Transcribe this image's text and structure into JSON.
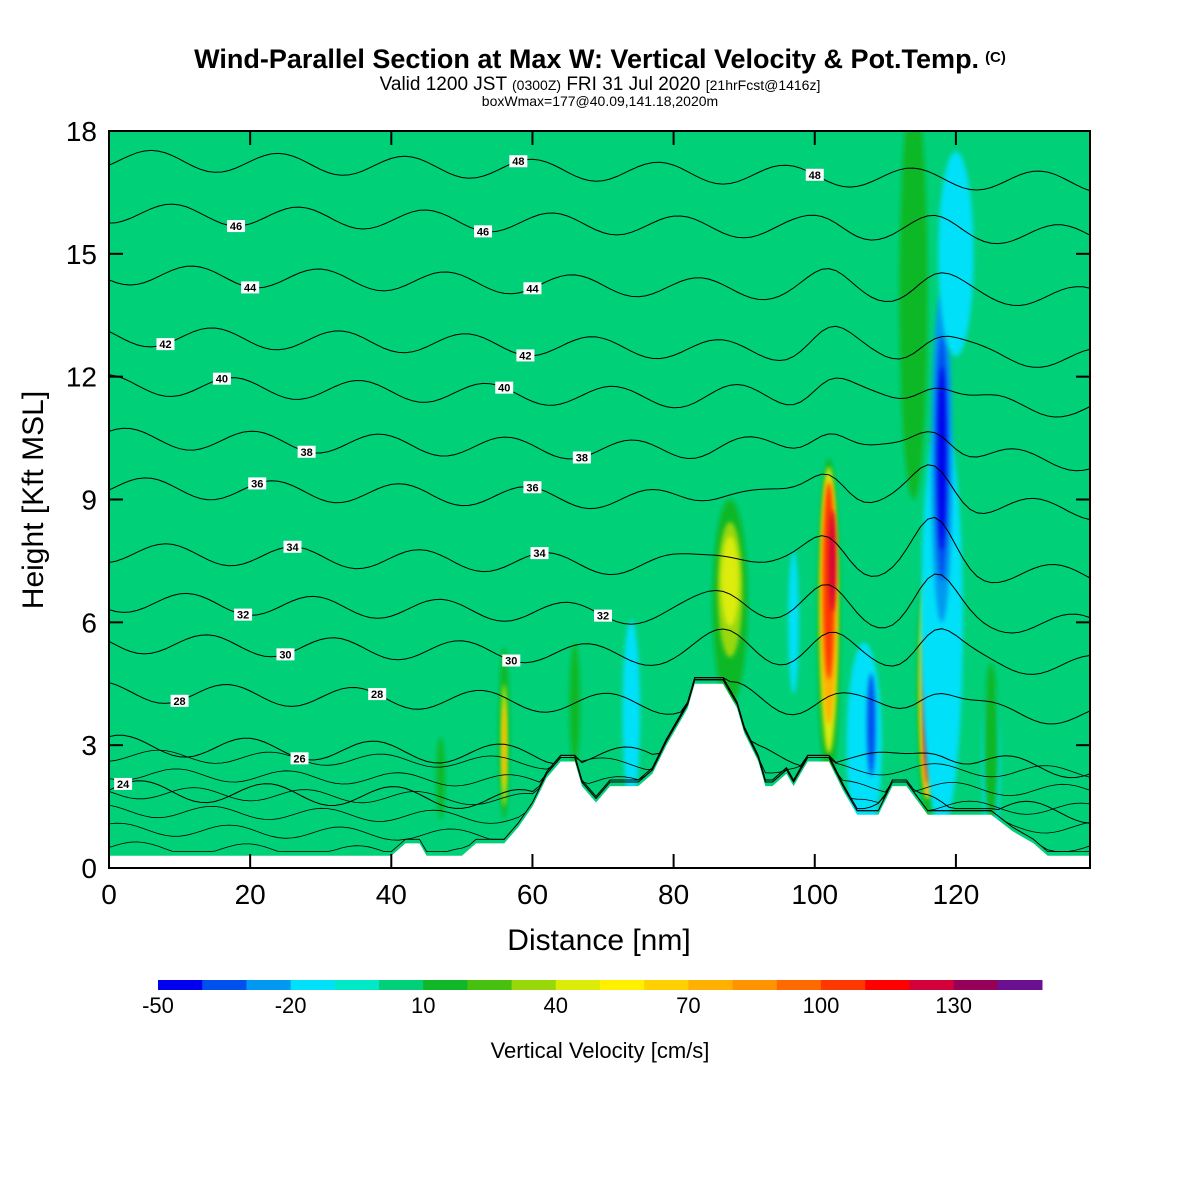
{
  "title": {
    "main": "Wind-Parallel Section at Max W: Vertical Velocity & Pot.Temp.",
    "copyright": "(C)",
    "valid_prefix": "Valid 1200 JST",
    "valid_utc": "(0300Z)",
    "valid_date": "FRI 31 Jul 2020",
    "forecast": "[21hrFcst@1416z]",
    "box_info": "boxWmax=177@40.09,141.18,2020m"
  },
  "chart_data": {
    "type": "heatmap",
    "xlabel": "Distance [nm]",
    "ylabel": "Height [Kft MSL]",
    "xlim": [
      0,
      139
    ],
    "ylim": [
      0,
      18
    ],
    "x_ticks": [
      0,
      20,
      40,
      60,
      80,
      100,
      120
    ],
    "y_ticks": [
      0,
      3,
      6,
      9,
      12,
      15,
      18
    ],
    "colorbar": {
      "title": "Vertical Velocity [cm/s]",
      "range": [
        -50,
        150
      ],
      "step": 10,
      "tick_labels": [
        "-50",
        "-20",
        "10",
        "40",
        "70",
        "100",
        "130"
      ],
      "tick_values": [
        -50,
        -20,
        10,
        40,
        70,
        100,
        130
      ],
      "colors": [
        "#0000ee",
        "#0050f0",
        "#0098f0",
        "#00e0f8",
        "#00e8c8",
        "#00d078",
        "#10b828",
        "#48c010",
        "#98d808",
        "#dcec08",
        "#fff000",
        "#ffd000",
        "#ffb000",
        "#ff9400",
        "#ff6a00",
        "#ff3800",
        "#ff0000",
        "#d4003a",
        "#960058",
        "#6a1090"
      ]
    },
    "background_value": 0,
    "terrain": [
      [
        0,
        0.3
      ],
      [
        3,
        0.3
      ],
      [
        40,
        0.3
      ],
      [
        42,
        0.6
      ],
      [
        44,
        0.6
      ],
      [
        45,
        0.3
      ],
      [
        50,
        0.3
      ],
      [
        52,
        0.6
      ],
      [
        56,
        0.6
      ],
      [
        58,
        1.0
      ],
      [
        60,
        1.5
      ],
      [
        62,
        2.2
      ],
      [
        64,
        2.6
      ],
      [
        66,
        2.6
      ],
      [
        67,
        2.0
      ],
      [
        69,
        1.6
      ],
      [
        71,
        2.0
      ],
      [
        75,
        2.0
      ],
      [
        77,
        2.3
      ],
      [
        79,
        3.0
      ],
      [
        80,
        3.3
      ],
      [
        82,
        3.9
      ],
      [
        83,
        4.5
      ],
      [
        87,
        4.5
      ],
      [
        89,
        3.9
      ],
      [
        90,
        3.3
      ],
      [
        92,
        2.6
      ],
      [
        93,
        2.0
      ],
      [
        94,
        2.0
      ],
      [
        96,
        2.3
      ],
      [
        97,
        2.0
      ],
      [
        98,
        2.3
      ],
      [
        99,
        2.6
      ],
      [
        102,
        2.6
      ],
      [
        104,
        1.9
      ],
      [
        106,
        1.3
      ],
      [
        109,
        1.3
      ],
      [
        111,
        2.0
      ],
      [
        112,
        2.0
      ],
      [
        113,
        2.0
      ],
      [
        116,
        1.3
      ],
      [
        120,
        1.3
      ],
      [
        125,
        1.3
      ],
      [
        128,
        0.9
      ],
      [
        131,
        0.6
      ],
      [
        133,
        0.3
      ],
      [
        139,
        0.3
      ]
    ],
    "w_features": [
      {
        "x": 0,
        "y": 17.5,
        "w": 18,
        "h": 4.0,
        "value": 5
      },
      {
        "x": 6,
        "y": 9.5,
        "w": 9,
        "h": 10,
        "value": 5
      },
      {
        "x": 22,
        "y": 6,
        "w": 5,
        "h": 10,
        "value": 5
      },
      {
        "x": 37,
        "y": 10,
        "w": 3,
        "h": 14,
        "value": 5
      },
      {
        "x": 60,
        "y": 10,
        "w": 3,
        "h": 14,
        "value": 5
      },
      {
        "x": 65,
        "y": 9,
        "w": 3,
        "h": 16,
        "value": 5
      },
      {
        "x": 78,
        "y": 13,
        "w": 3,
        "h": 12,
        "value": 5
      },
      {
        "x": 90,
        "y": 12,
        "w": 3,
        "h": 12,
        "value": 5
      },
      {
        "x": 97,
        "y": 13,
        "w": 2,
        "h": 9,
        "value": 5
      },
      {
        "x": 122,
        "y": 11,
        "w": 3,
        "h": 12,
        "value": 5
      },
      {
        "x": 126,
        "y": 7,
        "w": 3,
        "h": 10,
        "value": 5
      },
      {
        "x": 47,
        "y": 2.2,
        "w": 1.2,
        "h": 2.0,
        "value": 12
      },
      {
        "x": 56,
        "y": 3.3,
        "w": 1.5,
        "h": 4.2,
        "value": 12
      },
      {
        "x": 56,
        "y": 3.0,
        "w": 0.8,
        "h": 3.0,
        "value": 45
      },
      {
        "x": 56,
        "y": 3.0,
        "w": 0.5,
        "h": 2.0,
        "value": 70
      },
      {
        "x": 66,
        "y": 4.0,
        "w": 1.5,
        "h": 3.0,
        "value": 15
      },
      {
        "x": 74,
        "y": 3.8,
        "w": 2.5,
        "h": 4.5,
        "value": -15
      },
      {
        "x": 88,
        "y": 6.5,
        "w": 5.0,
        "h": 5.0,
        "value": 15
      },
      {
        "x": 88,
        "y": 6.8,
        "w": 3.5,
        "h": 3.3,
        "value": 30
      },
      {
        "x": 88,
        "y": 7.0,
        "w": 2.5,
        "h": 2.2,
        "value": 45
      },
      {
        "x": 97,
        "y": 6.0,
        "w": 1.5,
        "h": 3.5,
        "value": -15
      },
      {
        "x": 102,
        "y": 6.0,
        "w": 3.2,
        "h": 8.0,
        "value": 15
      },
      {
        "x": 102,
        "y": 6.3,
        "w": 2.6,
        "h": 7.0,
        "value": 45
      },
      {
        "x": 102,
        "y": 6.5,
        "w": 2.2,
        "h": 6.0,
        "value": 70
      },
      {
        "x": 102,
        "y": 7.0,
        "w": 1.6,
        "h": 4.8,
        "value": 100
      },
      {
        "x": 102.5,
        "y": 7.5,
        "w": 1.0,
        "h": 2.5,
        "value": 125
      },
      {
        "x": 107,
        "y": 3.0,
        "w": 5.0,
        "h": 5.0,
        "value": -15
      },
      {
        "x": 108,
        "y": 3.5,
        "w": 1.2,
        "h": 2.5,
        "value": -35
      },
      {
        "x": 114,
        "y": 14.0,
        "w": 4.0,
        "h": 10.0,
        "value": 15
      },
      {
        "x": 116,
        "y": 4.5,
        "w": 3.0,
        "h": 6.5,
        "value": 15
      },
      {
        "x": 116,
        "y": 4.5,
        "w": 2.4,
        "h": 5.6,
        "value": 45
      },
      {
        "x": 116,
        "y": 4.2,
        "w": 1.9,
        "h": 5.0,
        "value": 70
      },
      {
        "x": 116,
        "y": 3.8,
        "w": 1.3,
        "h": 3.5,
        "value": 100
      },
      {
        "x": 116,
        "y": 3.5,
        "w": 0.8,
        "h": 2.0,
        "value": 125
      },
      {
        "x": 118,
        "y": 6.0,
        "w": 6.0,
        "h": 10.0,
        "value": -15
      },
      {
        "x": 118,
        "y": 10.0,
        "w": 3.0,
        "h": 8.0,
        "value": -25
      },
      {
        "x": 118,
        "y": 10.0,
        "w": 1.8,
        "h": 6.0,
        "value": -35
      },
      {
        "x": 118,
        "y": 10.0,
        "w": 1.1,
        "h": 4.5,
        "value": -45
      },
      {
        "x": 125,
        "y": 2.5,
        "w": 2.5,
        "h": 4.0,
        "value": -15
      },
      {
        "x": 120,
        "y": 15.0,
        "w": 5.0,
        "h": 5.0,
        "value": -15
      },
      {
        "x": 125,
        "y": 3.0,
        "w": 2.0,
        "h": 4.0,
        "value": 12
      }
    ],
    "theta_contours": [
      {
        "value": 24,
        "y0": 1.9,
        "label_x": 2
      },
      {
        "value": 26,
        "y0": 3.0,
        "label_x": 27
      },
      {
        "value": 28,
        "y0": 4.3,
        "label_x": 10,
        "label_x2": 38
      },
      {
        "value": 30,
        "y0": 5.5,
        "label_x": 25,
        "label_x2": 57
      },
      {
        "value": 32,
        "y0": 6.5,
        "label_x": 19,
        "label_x2": 70
      },
      {
        "value": 34,
        "y0": 7.7,
        "label_x": 26,
        "label_x2": 61
      },
      {
        "value": 36,
        "y0": 9.3,
        "label_x": 21,
        "label_x2": 60
      },
      {
        "value": 38,
        "y0": 10.5,
        "label_x": 28,
        "label_x2": 67
      },
      {
        "value": 40,
        "y0": 11.8,
        "label_x": 16,
        "label_x2": 56
      },
      {
        "value": 42,
        "y0": 13.0,
        "label_x": 8,
        "label_x2": 59
      },
      {
        "value": 44,
        "y0": 14.5,
        "label_x": 20,
        "label_x2": 60
      },
      {
        "value": 46,
        "y0": 16.0,
        "label_x": 18,
        "label_x2": 53
      },
      {
        "value": 48,
        "y0": 17.3,
        "label_x": 58,
        "label_x2": 100
      }
    ]
  }
}
